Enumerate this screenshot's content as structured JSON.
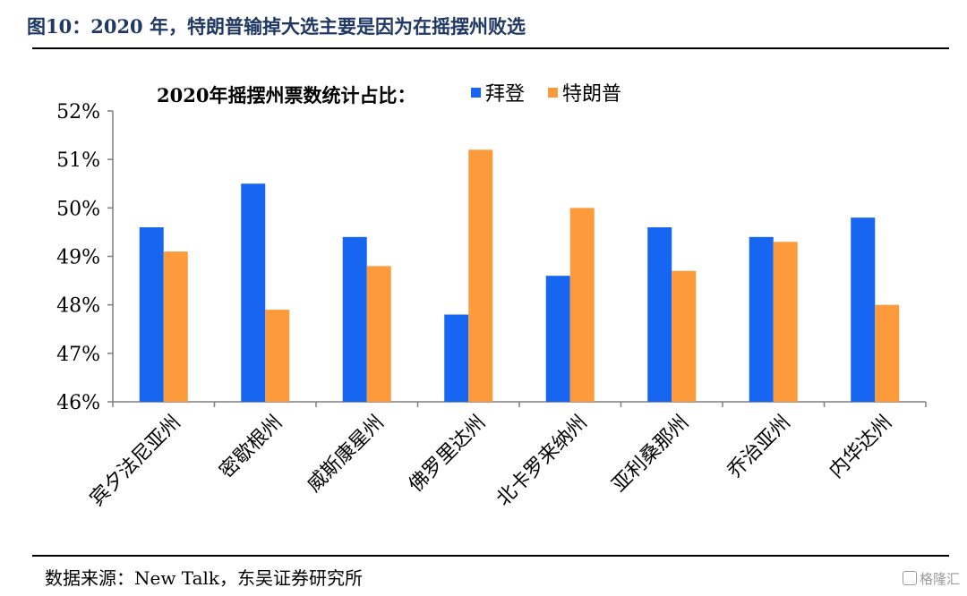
{
  "figure": {
    "title": "图10：2020 年，特朗普输掉大选主要是因为在摇摆州败选",
    "source": "数据来源：New Talk，东吴证券研究所",
    "watermark": "格隆汇"
  },
  "colors": {
    "title": "#1f3864",
    "biden": "#1766f2",
    "trump": "#fd9a3b"
  },
  "chart_data": {
    "type": "bar",
    "title": "2020年摇摆州票数统计占比：",
    "categories": [
      "宾夕法尼亚州",
      "密歇根州",
      "威斯康星州",
      "佛罗里达州",
      "北卡罗来纳州",
      "亚利桑那州",
      "乔治亚州",
      "内华达州"
    ],
    "series": [
      {
        "name": "拜登",
        "color": "#1766f2",
        "values": [
          49.6,
          50.5,
          49.4,
          47.8,
          48.6,
          49.6,
          49.4,
          49.8
        ]
      },
      {
        "name": "特朗普",
        "color": "#fd9a3b",
        "values": [
          49.1,
          47.9,
          48.8,
          51.2,
          50.0,
          48.7,
          49.3,
          48.0
        ]
      }
    ],
    "ylim": [
      46,
      52
    ],
    "yticks": [
      "46%",
      "47%",
      "48%",
      "49%",
      "50%",
      "51%",
      "52%"
    ],
    "xlabel": "",
    "ylabel": "",
    "grid": false,
    "legend_position": "top"
  }
}
